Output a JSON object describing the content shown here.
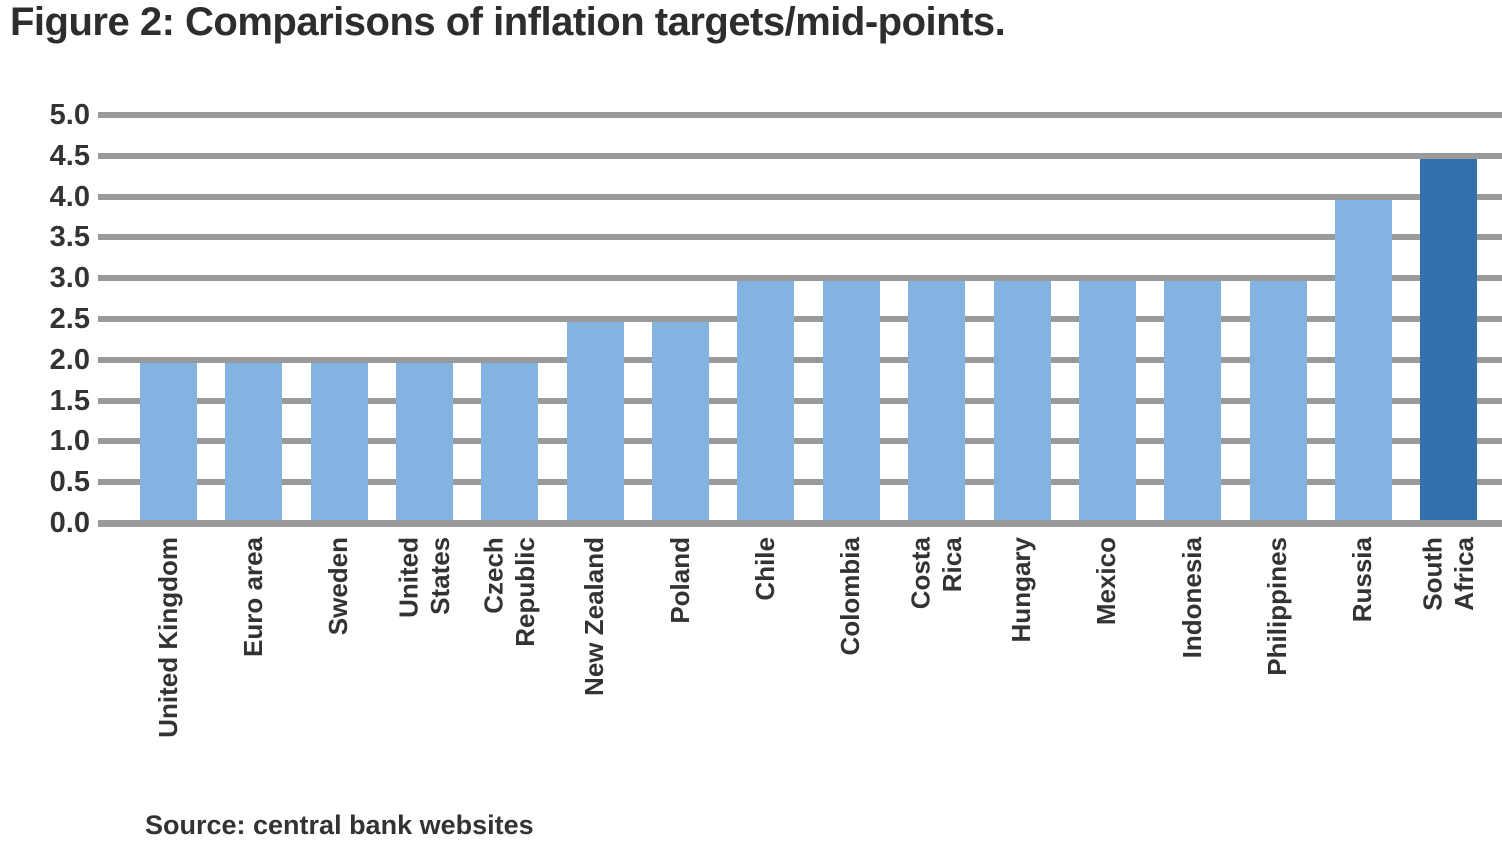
{
  "title": "Figure 2: Comparisons of inflation targets/mid-points.",
  "footnote": "Source: central bank websites",
  "chart_data": {
    "type": "bar",
    "title": "Figure 2: Comparisons of inflation targets/mid-points.",
    "categories": [
      "United Kingdom",
      "Euro area",
      "Sweden",
      "United\nStates",
      "Czech\nRepublic",
      "New Zealand",
      "Poland",
      "Chile",
      "Colombia",
      "Costa\nRica",
      "Hungary",
      "Mexico",
      "Indonesia",
      "Philippines",
      "Russia",
      "South\nAfrica"
    ],
    "values": [
      2.0,
      2.0,
      2.0,
      2.0,
      2.0,
      2.5,
      2.5,
      3.0,
      3.0,
      3.0,
      3.0,
      3.0,
      3.0,
      3.0,
      4.0,
      4.5
    ],
    "highlight_index": 15,
    "xlabel": "",
    "ylabel": "",
    "ylim": [
      0,
      5
    ],
    "ytick_step": 0.5,
    "yticks": [
      "5.0",
      "4.5",
      "4.0",
      "3.5",
      "3.0",
      "2.5",
      "2.0",
      "1.5",
      "1.0",
      "0.5",
      "0.0"
    ],
    "grid": true,
    "legend": "none",
    "colors": {
      "bar": "#85b3e1",
      "highlight": "#3470ad",
      "gridline": "#9a9a9b",
      "text": "#333333"
    }
  }
}
